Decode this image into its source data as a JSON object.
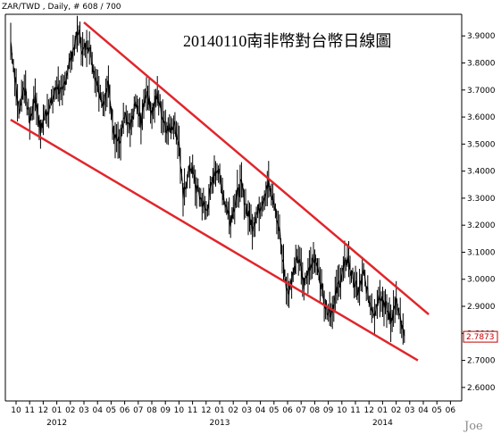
{
  "header": "ZAR/TWD , Daily, # 608 / 700",
  "title": "20140110南非幣對台幣日線圖",
  "watermark": "Joe",
  "last_price_label": "2.7873",
  "colors": {
    "price_line": "#000000",
    "trend_line": "#e0262b",
    "last_price": "#c00000",
    "axis": "#000000"
  },
  "chart_data": {
    "type": "line",
    "title": "20140110南非幣對台幣日線圖",
    "xlabel": "",
    "ylabel": "",
    "ylim": [
      2.55,
      3.98
    ],
    "y_ticks": [
      2.6,
      2.7,
      2.8,
      2.9,
      3.0,
      3.1,
      3.2,
      3.3,
      3.4,
      3.5,
      3.6,
      3.7,
      3.8,
      3.9
    ],
    "y_tick_labels": [
      "2.6000",
      "2.7000",
      "2.8000",
      "2.9000",
      "3.0000",
      "3.1000",
      "3.2000",
      "3.3000",
      "3.4000",
      "3.5000",
      "3.6000",
      "3.7000",
      "3.8000",
      "3.9000"
    ],
    "x_ticks": [
      "10",
      "11",
      "12",
      "01",
      "02",
      "03",
      "04",
      "05",
      "06",
      "07",
      "08",
      "09",
      "10",
      "11",
      "12",
      "01",
      "02",
      "03",
      "04",
      "05",
      "06",
      "07",
      "08",
      "09",
      "10",
      "11",
      "12",
      "01",
      "02",
      "03",
      "04",
      "05",
      "06"
    ],
    "x_years": [
      {
        "label": "2012",
        "month_index": 3
      },
      {
        "label": "2013",
        "month_index": 15
      },
      {
        "label": "2014",
        "month_index": 27
      }
    ],
    "last_value": 2.7873,
    "series": [
      {
        "values": [
          {
            "m": 0.0,
            "v": 3.88
          },
          {
            "m": 0.3,
            "v": 3.75
          },
          {
            "m": 0.6,
            "v": 3.62
          },
          {
            "m": 1.0,
            "v": 3.72
          },
          {
            "m": 1.4,
            "v": 3.58
          },
          {
            "m": 1.8,
            "v": 3.68
          },
          {
            "m": 2.2,
            "v": 3.55
          },
          {
            "m": 2.6,
            "v": 3.62
          },
          {
            "m": 3.0,
            "v": 3.65
          },
          {
            "m": 3.4,
            "v": 3.72
          },
          {
            "m": 3.8,
            "v": 3.68
          },
          {
            "m": 4.2,
            "v": 3.78
          },
          {
            "m": 4.6,
            "v": 3.85
          },
          {
            "m": 5.0,
            "v": 3.92
          },
          {
            "m": 5.3,
            "v": 3.84
          },
          {
            "m": 5.7,
            "v": 3.88
          },
          {
            "m": 6.0,
            "v": 3.8
          },
          {
            "m": 6.4,
            "v": 3.72
          },
          {
            "m": 6.8,
            "v": 3.65
          },
          {
            "m": 7.2,
            "v": 3.72
          },
          {
            "m": 7.6,
            "v": 3.55
          },
          {
            "m": 8.0,
            "v": 3.5
          },
          {
            "m": 8.4,
            "v": 3.6
          },
          {
            "m": 8.8,
            "v": 3.55
          },
          {
            "m": 9.2,
            "v": 3.65
          },
          {
            "m": 9.6,
            "v": 3.58
          },
          {
            "m": 10.0,
            "v": 3.7
          },
          {
            "m": 10.4,
            "v": 3.62
          },
          {
            "m": 10.8,
            "v": 3.68
          },
          {
            "m": 11.2,
            "v": 3.6
          },
          {
            "m": 11.6,
            "v": 3.55
          },
          {
            "m": 12.0,
            "v": 3.58
          },
          {
            "m": 12.4,
            "v": 3.5
          },
          {
            "m": 12.7,
            "v": 3.3
          },
          {
            "m": 13.0,
            "v": 3.38
          },
          {
            "m": 13.3,
            "v": 3.42
          },
          {
            "m": 13.6,
            "v": 3.35
          },
          {
            "m": 14.0,
            "v": 3.3
          },
          {
            "m": 14.4,
            "v": 3.25
          },
          {
            "m": 14.8,
            "v": 3.35
          },
          {
            "m": 15.2,
            "v": 3.42
          },
          {
            "m": 15.5,
            "v": 3.35
          },
          {
            "m": 15.8,
            "v": 3.28
          },
          {
            "m": 16.2,
            "v": 3.22
          },
          {
            "m": 16.6,
            "v": 3.3
          },
          {
            "m": 17.0,
            "v": 3.35
          },
          {
            "m": 17.4,
            "v": 3.25
          },
          {
            "m": 17.8,
            "v": 3.2
          },
          {
            "m": 18.2,
            "v": 3.25
          },
          {
            "m": 18.6,
            "v": 3.3
          },
          {
            "m": 19.0,
            "v": 3.35
          },
          {
            "m": 19.4,
            "v": 3.28
          },
          {
            "m": 19.8,
            "v": 3.18
          },
          {
            "m": 20.1,
            "v": 3.05
          },
          {
            "m": 20.4,
            "v": 2.95
          },
          {
            "m": 20.8,
            "v": 3.02
          },
          {
            "m": 21.2,
            "v": 3.08
          },
          {
            "m": 21.6,
            "v": 2.98
          },
          {
            "m": 22.0,
            "v": 3.05
          },
          {
            "m": 22.4,
            "v": 3.08
          },
          {
            "m": 22.8,
            "v": 3.0
          },
          {
            "m": 23.2,
            "v": 2.9
          },
          {
            "m": 23.6,
            "v": 2.88
          },
          {
            "m": 24.0,
            "v": 2.95
          },
          {
            "m": 24.4,
            "v": 3.02
          },
          {
            "m": 24.8,
            "v": 3.08
          },
          {
            "m": 25.2,
            "v": 3.0
          },
          {
            "m": 25.6,
            "v": 2.95
          },
          {
            "m": 26.0,
            "v": 3.02
          },
          {
            "m": 26.4,
            "v": 2.92
          },
          {
            "m": 26.8,
            "v": 2.88
          },
          {
            "m": 27.2,
            "v": 2.95
          },
          {
            "m": 27.6,
            "v": 2.9
          },
          {
            "m": 28.0,
            "v": 2.85
          },
          {
            "m": 28.4,
            "v": 2.92
          },
          {
            "m": 28.8,
            "v": 2.82
          },
          {
            "m": 29.0,
            "v": 2.79
          }
        ]
      }
    ],
    "trendlines": [
      {
        "name": "upper",
        "from": {
          "m": 5.0,
          "v": 3.95
        },
        "to": {
          "m": 30.4,
          "v": 2.87
        }
      },
      {
        "name": "lower",
        "from": {
          "m": -0.4,
          "v": 3.59
        },
        "to": {
          "m": 29.6,
          "v": 2.7
        }
      }
    ]
  }
}
